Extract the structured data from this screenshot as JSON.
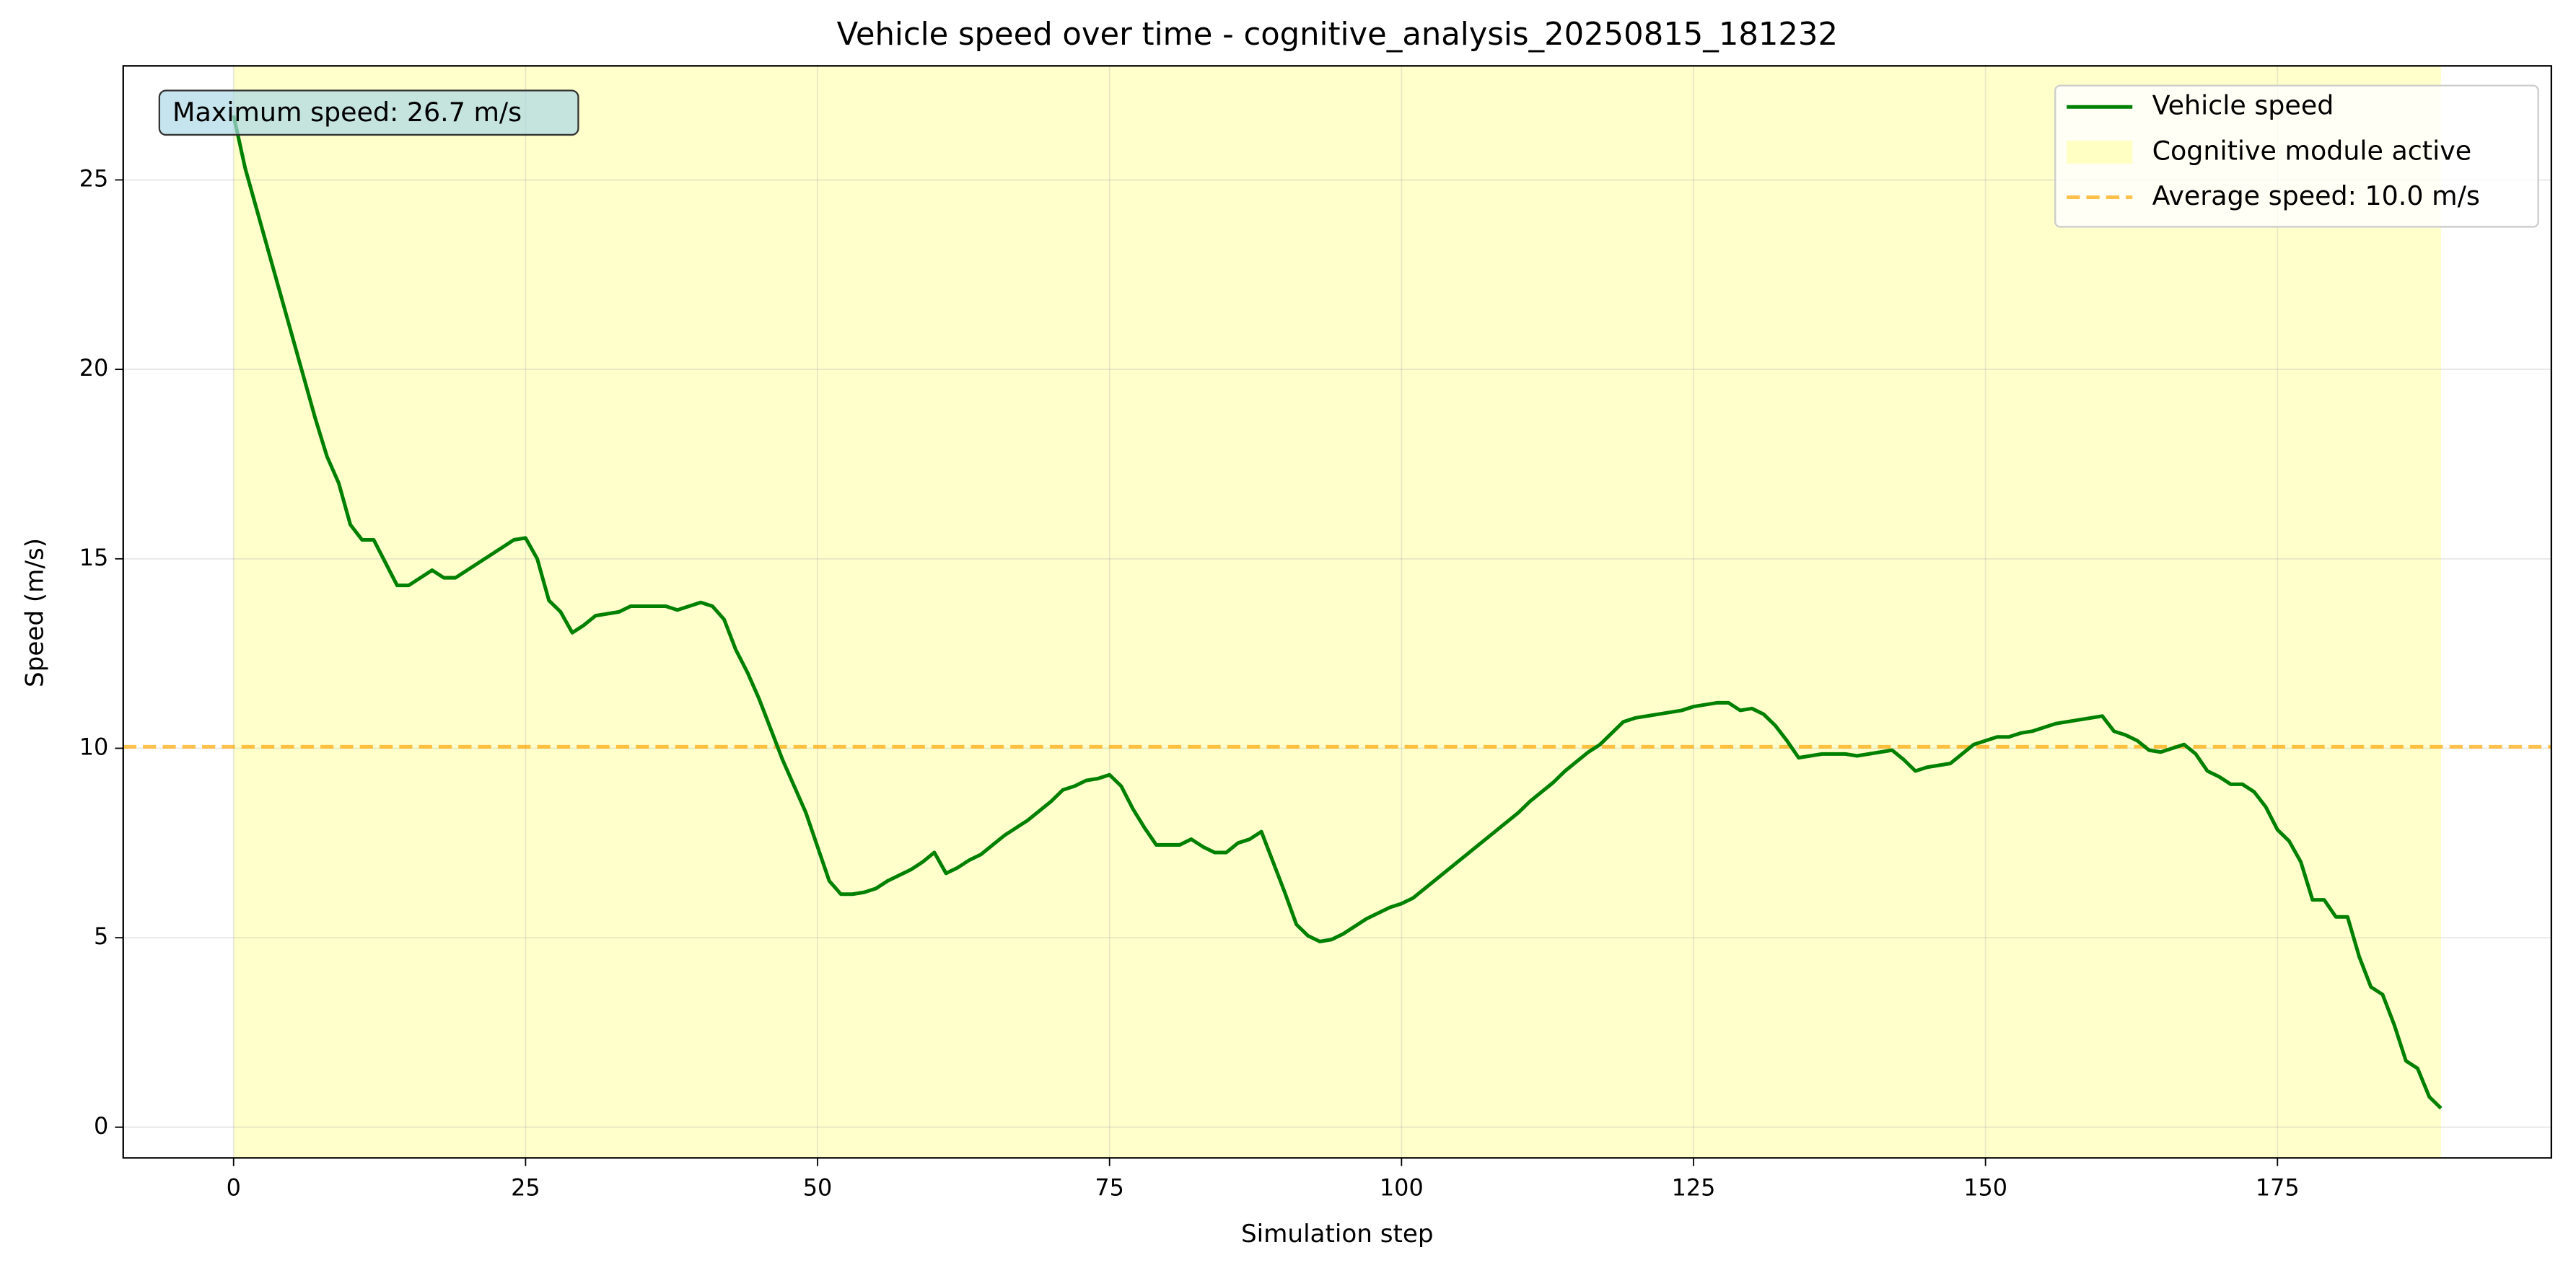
{
  "chart_data": {
    "type": "line",
    "title": "Vehicle speed over time - cognitive_analysis_20250815_181232",
    "x_label": "Simulation step",
    "y_label": "Speed (m/s)",
    "xlim": [
      -9.45,
      198.45
    ],
    "ylim": [
      -0.81,
      28.01
    ],
    "xticks": [
      0,
      25,
      50,
      75,
      100,
      125,
      150,
      175
    ],
    "yticks": [
      0,
      5,
      10,
      15,
      20,
      25
    ],
    "grid": true,
    "legend": "upper right",
    "x": [
      0,
      1,
      2,
      3,
      4,
      5,
      6,
      7,
      8,
      9,
      10,
      11,
      12,
      13,
      14,
      15,
      16,
      17,
      18,
      19,
      20,
      21,
      22,
      23,
      24,
      25,
      26,
      27,
      28,
      29,
      30,
      31,
      32,
      33,
      34,
      35,
      36,
      37,
      38,
      39,
      40,
      41,
      42,
      43,
      44,
      45,
      46,
      47,
      48,
      49,
      50,
      51,
      52,
      53,
      54,
      55,
      56,
      57,
      58,
      59,
      60,
      61,
      62,
      63,
      64,
      65,
      66,
      67,
      68,
      69,
      70,
      71,
      72,
      73,
      74,
      75,
      76,
      77,
      78,
      79,
      80,
      81,
      82,
      83,
      84,
      85,
      86,
      87,
      88,
      89,
      90,
      91,
      92,
      93,
      94,
      95,
      96,
      97,
      98,
      99,
      100,
      101,
      102,
      103,
      104,
      105,
      106,
      107,
      108,
      109,
      110,
      111,
      112,
      113,
      114,
      115,
      116,
      117,
      118,
      119,
      120,
      121,
      122,
      123,
      124,
      125,
      126,
      127,
      128,
      129,
      130,
      131,
      132,
      133,
      134,
      135,
      136,
      137,
      138,
      139,
      140,
      141,
      142,
      143,
      144,
      145,
      146,
      147,
      148,
      149,
      150,
      151,
      152,
      153,
      154,
      155,
      156,
      157,
      158,
      159,
      160,
      161,
      162,
      163,
      164,
      165,
      166,
      167,
      168,
      169,
      170,
      171,
      172,
      173,
      174,
      175,
      176,
      177,
      178,
      179,
      180,
      181,
      182,
      183,
      184,
      185,
      186,
      187,
      188,
      189
    ],
    "series": [
      {
        "name": "Vehicle speed",
        "color": "#008000",
        "values": [
          26.7,
          25.3,
          24.2,
          23.1,
          22.0,
          20.9,
          19.8,
          18.7,
          17.7,
          17.0,
          15.9,
          15.5,
          15.5,
          14.9,
          14.3,
          14.3,
          14.5,
          14.7,
          14.5,
          14.5,
          14.7,
          14.9,
          15.1,
          15.3,
          15.5,
          15.55,
          15.0,
          13.9,
          13.6,
          13.05,
          13.25,
          13.5,
          13.55,
          13.6,
          13.75,
          13.75,
          13.75,
          13.75,
          13.65,
          13.75,
          13.85,
          13.75,
          13.4,
          12.6,
          12.0,
          11.3,
          10.5,
          9.7,
          9.0,
          8.3,
          7.4,
          6.5,
          6.15,
          6.15,
          6.2,
          6.3,
          6.5,
          6.65,
          6.8,
          7.0,
          7.25,
          6.7,
          6.85,
          7.05,
          7.2,
          7.45,
          7.7,
          7.9,
          8.1,
          8.35,
          8.6,
          8.9,
          9.0,
          9.15,
          9.2,
          9.3,
          9.0,
          8.4,
          7.9,
          7.45,
          7.45,
          7.45,
          7.6,
          7.4,
          7.25,
          7.25,
          7.5,
          7.6,
          7.8,
          7.0,
          6.2,
          5.35,
          5.05,
          4.9,
          4.95,
          5.1,
          5.3,
          5.5,
          5.65,
          5.8,
          5.9,
          6.05,
          6.3,
          6.55,
          6.8,
          7.05,
          7.3,
          7.55,
          7.8,
          8.05,
          8.3,
          8.6,
          8.85,
          9.1,
          9.4,
          9.65,
          9.9,
          10.1,
          10.4,
          10.7,
          10.8,
          10.85,
          10.9,
          10.95,
          11.0,
          11.1,
          11.15,
          11.2,
          11.2,
          11.0,
          11.05,
          10.9,
          10.6,
          10.2,
          9.75,
          9.8,
          9.85,
          9.85,
          9.85,
          9.8,
          9.85,
          9.9,
          9.95,
          9.7,
          9.4,
          9.5,
          9.55,
          9.6,
          9.85,
          10.1,
          10.2,
          10.3,
          10.3,
          10.4,
          10.45,
          10.55,
          10.65,
          10.7,
          10.75,
          10.8,
          10.85,
          10.45,
          10.35,
          10.2,
          9.95,
          9.9,
          10.0,
          10.1,
          9.85,
          9.4,
          9.25,
          9.05,
          9.05,
          8.85,
          8.45,
          7.85,
          7.55,
          7.0,
          6.0,
          6.0,
          5.55,
          5.55,
          4.5,
          3.7,
          3.5,
          2.7,
          1.75,
          1.55,
          0.8,
          0.5
        ]
      }
    ],
    "shaded_span": {
      "label": "Cognitive module active",
      "color": "#ffff00",
      "from": 0,
      "to": 189
    },
    "reference_line": {
      "label": "Average speed: 10.0 m/s",
      "color": "#ffa500",
      "value": 10.04
    },
    "annotation": {
      "text": "Maximum speed: 26.7 m/s",
      "color": "#add8e6"
    }
  }
}
